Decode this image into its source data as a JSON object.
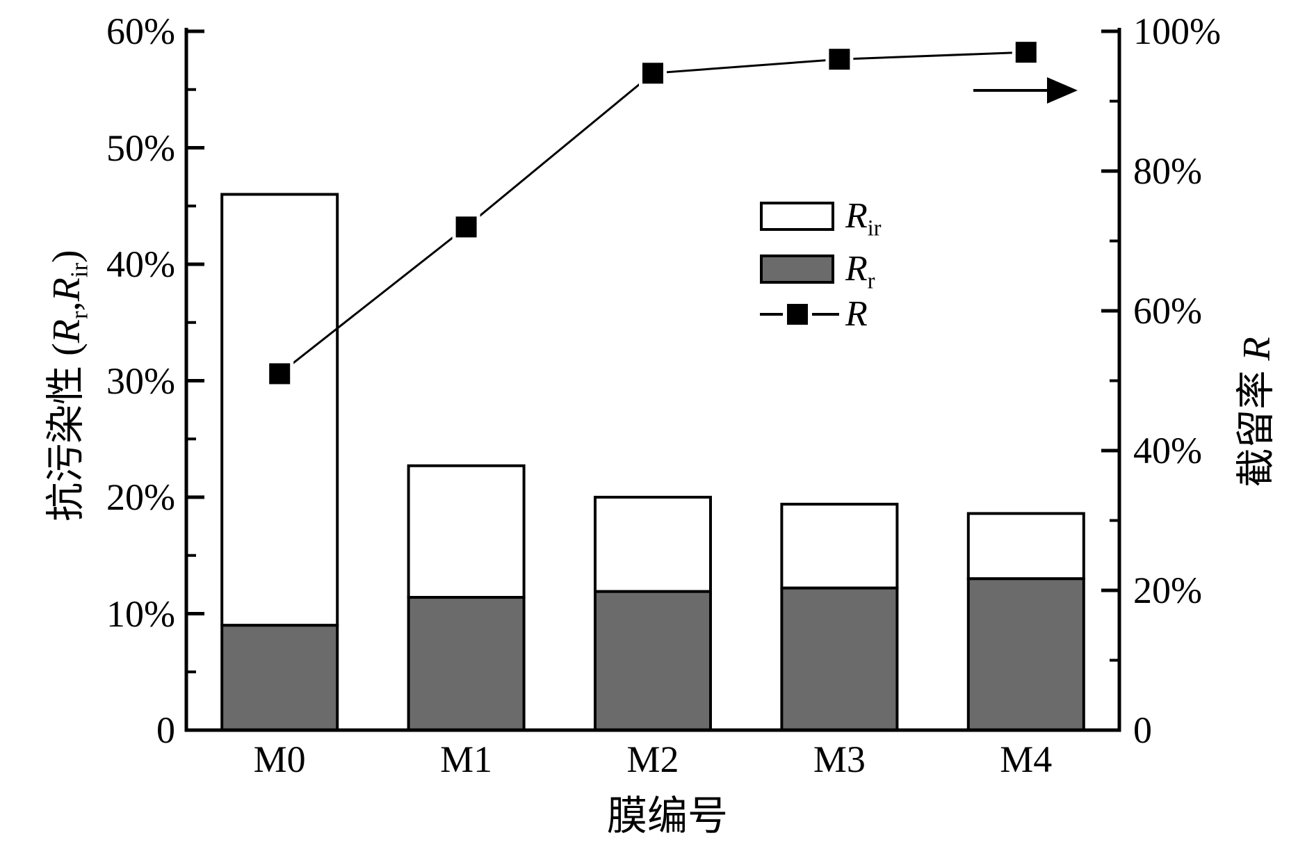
{
  "chart_data": {
    "type": "bar",
    "subtype": "stacked-bars-with-line-dual-axis",
    "categories": [
      "M0",
      "M1",
      "M2",
      "M3",
      "M4"
    ],
    "series": [
      {
        "name": "Rr",
        "label_main": "R",
        "label_sub": "r",
        "render": "bar-stack-bottom",
        "axis": "left",
        "color": "#6b6b6b",
        "values": [
          9.0,
          11.4,
          11.9,
          12.2,
          13.0
        ]
      },
      {
        "name": "Rir",
        "label_main": "R",
        "label_sub": "ir",
        "render": "bar-stack-top",
        "axis": "left",
        "color": "#ffffff",
        "values": [
          37.0,
          11.3,
          8.1,
          7.2,
          5.6
        ]
      },
      {
        "name": "R",
        "label_main": "R",
        "label_sub": "",
        "render": "line",
        "axis": "right",
        "color": "#000000",
        "marker": "filled-square",
        "values": [
          51,
          72,
          94,
          96,
          97
        ]
      }
    ],
    "stack_totals": [
      46.0,
      22.7,
      20.0,
      19.4,
      18.6
    ],
    "title": "",
    "xlabel": "膜编号",
    "ylabel_left": "抗污染性 (Rr,Rir)",
    "ylabel_right": "截留率 R",
    "axes": {
      "left": {
        "min": 0,
        "max": 60,
        "unit": "%",
        "major_step": 10,
        "minor_step": 5,
        "tick_labels": [
          "0",
          "10%",
          "20%",
          "30%",
          "40%",
          "50%",
          "60%"
        ]
      },
      "right": {
        "min": 0,
        "max": 100,
        "unit": "%",
        "major_step": 20,
        "minor_step": 10,
        "tick_labels": [
          "0",
          "20%",
          "40%",
          "60%",
          "80%",
          "100%"
        ]
      }
    },
    "grid": false,
    "legend_position": "inside-upper-right",
    "annotations": [
      {
        "type": "arrow",
        "direction": "right",
        "meaning": "line series read on right axis"
      }
    ]
  },
  "axis_titles": {
    "x": "膜编号",
    "left_prefix": "抗污染性 (",
    "left_R1": "R",
    "left_sub1": "r",
    "left_comma": ",",
    "left_R2": "R",
    "left_sub2": "ir",
    "left_suffix": ")",
    "right_prefix": "截留率 ",
    "right_R": "R"
  },
  "legend": {
    "rows": [
      {
        "main": "R",
        "sub": "ir",
        "swatch": "white-rect"
      },
      {
        "main": "R",
        "sub": "r",
        "swatch": "gray-rect"
      },
      {
        "main": "R",
        "sub": "",
        "swatch": "line-with-square-marker"
      }
    ]
  },
  "colors": {
    "bar_fill_gray": "#6b6b6b",
    "bar_fill_white": "#ffffff",
    "stroke": "#000000",
    "background": "#ffffff"
  }
}
